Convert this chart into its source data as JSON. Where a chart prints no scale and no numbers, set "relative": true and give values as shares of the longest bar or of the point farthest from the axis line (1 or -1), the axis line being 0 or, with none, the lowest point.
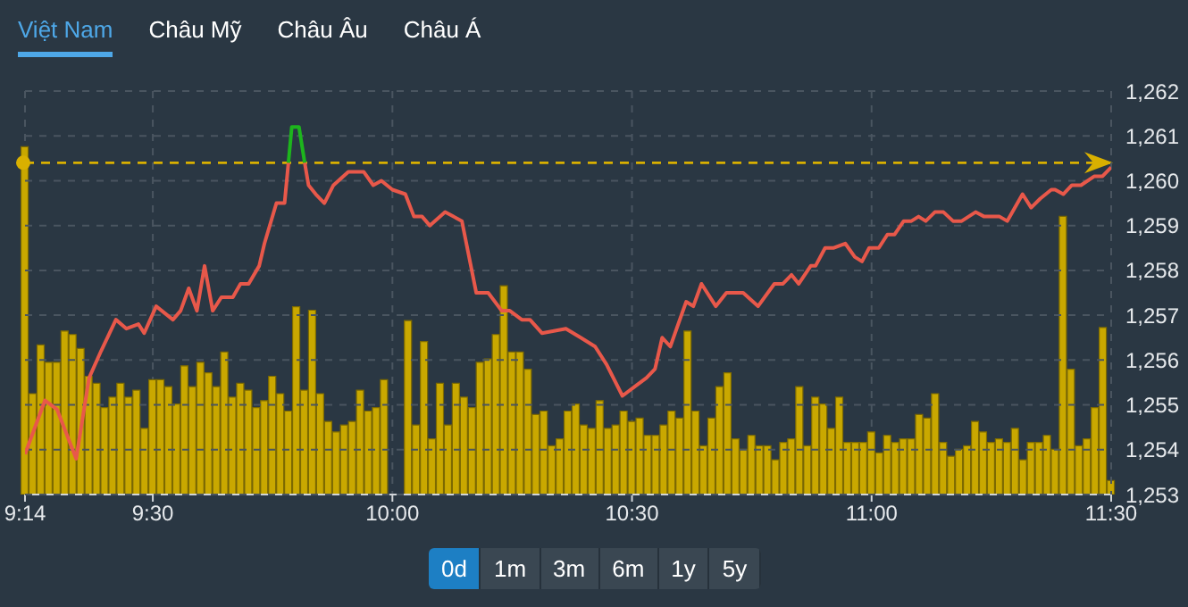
{
  "chart_data": [
    {
      "type": "line",
      "annotations": [
        "Việt Nam",
        "Châu Mỹ",
        "Châu Âu",
        "Châu Á",
        "0d",
        "1m",
        "3m",
        "6m",
        "1y",
        "5y"
      ],
      "xlim": [
        9.2333,
        11.5
      ],
      "tick_labels": "y",
      "ylim": [
        1253,
        1262
      ],
      "yticks": [
        {
          "value": 1253,
          "label": "1,253"
        },
        {
          "value": 1254,
          "label": "1,254"
        },
        {
          "value": 1255,
          "label": "1,255"
        },
        {
          "value": 1256,
          "label": "1,256"
        },
        {
          "value": 1257,
          "label": "1,257"
        },
        {
          "value": 1258,
          "label": "1,258"
        },
        {
          "value": 1259,
          "label": "1,259"
        },
        {
          "value": 1260,
          "label": "1,260"
        },
        {
          "value": 1261,
          "label": "1,261"
        },
        {
          "value": 1262,
          "label": "1,262"
        }
      ],
      "grid": "y",
      "ref_lines": [
        {
          "axis": "y",
          "value": 1260.4,
          "color": "#d9b000",
          "line_style": "dashed"
        }
      ],
      "series": [
        {
          "color": "#e8584a",
          "x": [
            9.2333,
            9.275,
            9.3,
            9.34,
            9.367,
            9.392,
            9.423,
            9.445,
            9.47,
            9.482,
            9.507,
            9.542,
            9.558,
            9.575,
            9.592,
            9.608,
            9.625,
            9.643,
            9.667,
            9.683,
            9.7,
            9.722,
            9.733,
            9.758,
            9.775,
            9.783
          ],
          "values": [
            1253.9,
            1255.1,
            1254.9,
            1253.8,
            1255.6,
            1256.2,
            1256.9,
            1256.7,
            1256.8,
            1256.6,
            1257.2,
            1256.9,
            1257.1,
            1257.6,
            1257.1,
            1258.1,
            1257.1,
            1257.4,
            1257.4,
            1257.7,
            1257.7,
            1258.1,
            1258.6,
            1259.5,
            1259.5,
            1260.4
          ]
        },
        {
          "color": "#1db51d",
          "x": [
            9.783,
            9.79,
            9.805,
            9.817
          ],
          "values": [
            1260.4,
            1261.2,
            1261.2,
            1260.4
          ]
        },
        {
          "color": "#e8584a",
          "x": [
            9.817,
            9.825,
            9.84,
            9.858,
            9.877,
            9.908,
            9.94,
            9.96,
            9.977,
            10.0,
            10.027,
            10.045,
            10.062,
            10.078,
            10.11,
            10.145,
            10.175,
            10.2,
            10.228,
            10.245,
            10.27,
            10.287,
            10.312,
            10.362,
            10.393,
            10.423,
            10.447,
            10.48,
            10.505,
            10.53,
            10.548,
            10.563,
            10.58,
            10.613,
            10.628,
            10.645,
            10.675,
            10.697,
            10.732,
            10.763,
            10.797,
            10.815,
            10.833,
            10.848,
            10.873,
            10.883,
            10.903,
            10.92,
            10.945,
            10.965,
            10.98,
            10.995,
            11.015,
            11.033,
            11.048,
            11.067,
            11.083,
            11.098,
            11.113,
            11.132,
            11.15,
            11.17,
            11.188,
            11.217,
            11.235,
            11.267,
            11.283,
            11.315,
            11.333,
            11.352,
            11.375,
            11.383,
            11.4,
            11.418,
            11.437,
            11.465,
            11.482,
            11.5
          ],
          "values": [
            1260.4,
            1259.9,
            1259.7,
            1259.5,
            1259.9,
            1260.2,
            1260.2,
            1259.9,
            1260.0,
            1259.8,
            1259.7,
            1259.2,
            1259.2,
            1259.0,
            1259.3,
            1259.1,
            1257.5,
            1257.5,
            1257.1,
            1257.1,
            1256.9,
            1256.9,
            1256.6,
            1256.7,
            1256.5,
            1256.3,
            1255.9,
            1255.2,
            1255.4,
            1255.6,
            1255.8,
            1256.5,
            1256.3,
            1257.3,
            1257.2,
            1257.7,
            1257.2,
            1257.5,
            1257.5,
            1257.2,
            1257.7,
            1257.7,
            1257.9,
            1257.7,
            1258.1,
            1258.1,
            1258.5,
            1258.5,
            1258.6,
            1258.3,
            1258.2,
            1258.5,
            1258.5,
            1258.8,
            1258.8,
            1259.1,
            1259.1,
            1259.2,
            1259.1,
            1259.3,
            1259.3,
            1259.1,
            1259.1,
            1259.3,
            1259.2,
            1259.2,
            1259.1,
            1259.7,
            1259.4,
            1259.6,
            1259.8,
            1259.8,
            1259.7,
            1259.9,
            1259.9,
            1260.1,
            1260.1,
            1260.3
          ]
        }
      ]
    },
    {
      "type": "bar",
      "relative": true,
      "tick_labels": "x",
      "grid": "x",
      "color": "#c9a800",
      "xlim": [
        9.2333,
        11.5
      ],
      "xticks": [
        {
          "value": 9.2333,
          "label": "9:14"
        },
        {
          "value": 9.5,
          "label": "9:30"
        },
        {
          "value": 10,
          "label": "10:00"
        },
        {
          "value": 10.5,
          "label": "10:30"
        },
        {
          "value": 11,
          "label": "11:00"
        },
        {
          "value": 11.5,
          "label": "11:30"
        }
      ],
      "x": [
        9.2333,
        9.25,
        9.2667,
        9.2833,
        9.3,
        9.3167,
        9.3333,
        9.35,
        9.3667,
        9.3833,
        9.4,
        9.4167,
        9.4333,
        9.45,
        9.4667,
        9.4833,
        9.5,
        9.5167,
        9.5333,
        9.55,
        9.5667,
        9.5833,
        9.6,
        9.6167,
        9.6333,
        9.65,
        9.6667,
        9.6833,
        9.7,
        9.7167,
        9.7333,
        9.75,
        9.7667,
        9.7833,
        9.8,
        9.8167,
        9.8333,
        9.85,
        9.8667,
        9.8833,
        9.9,
        9.9167,
        9.9333,
        9.95,
        9.9667,
        9.9833,
        10,
        10.0167,
        10.0333,
        10.05,
        10.0667,
        10.0833,
        10.1,
        10.1167,
        10.1333,
        10.15,
        10.1667,
        10.1833,
        10.2,
        10.2167,
        10.2333,
        10.25,
        10.2667,
        10.2833,
        10.3,
        10.3167,
        10.3333,
        10.35,
        10.3667,
        10.3833,
        10.4,
        10.4167,
        10.4333,
        10.45,
        10.4667,
        10.4833,
        10.5,
        10.5167,
        10.5333,
        10.55,
        10.5667,
        10.5833,
        10.6,
        10.6167,
        10.6333,
        10.65,
        10.6667,
        10.6833,
        10.7,
        10.7167,
        10.7333,
        10.75,
        10.7667,
        10.7833,
        10.8,
        10.8167,
        10.8333,
        10.85,
        10.8667,
        10.8833,
        10.9,
        10.9167,
        10.9333,
        10.95,
        10.9667,
        10.9833,
        11,
        11.0167,
        11.0333,
        11.05,
        11.0667,
        11.0833,
        11.1,
        11.1167,
        11.1333,
        11.15,
        11.1667,
        11.1833,
        11.2,
        11.2167,
        11.2333,
        11.25,
        11.2667,
        11.2833,
        11.3,
        11.3167,
        11.3333,
        11.35,
        11.3667,
        11.3833,
        11.4,
        11.4167,
        11.4333,
        11.45,
        11.4667,
        11.4833,
        11.5
      ],
      "values": [
        1.0,
        0.29,
        0.43,
        0.38,
        0.38,
        0.47,
        0.46,
        0.42,
        0.34,
        0.32,
        0.25,
        0.28,
        0.32,
        0.28,
        0.3,
        0.19,
        0.33,
        0.33,
        0.31,
        0.26,
        0.37,
        0.31,
        0.38,
        0.35,
        0.31,
        0.41,
        0.28,
        0.32,
        0.3,
        0.25,
        0.27,
        0.34,
        0.29,
        0.24,
        0.54,
        0.3,
        0.53,
        0.29,
        0.21,
        0.18,
        0.2,
        0.21,
        0.3,
        0.24,
        0.25,
        0.33,
        null,
        null,
        0.5,
        0.2,
        0.44,
        0.16,
        0.32,
        0.2,
        0.32,
        0.28,
        0.25,
        0.38,
        0.39,
        0.46,
        0.6,
        0.41,
        0.41,
        0.36,
        0.23,
        0.24,
        0.14,
        0.16,
        0.24,
        0.26,
        0.2,
        0.19,
        0.27,
        0.19,
        0.2,
        0.24,
        0.21,
        0.22,
        0.17,
        0.17,
        0.2,
        0.24,
        0.22,
        0.47,
        0.24,
        0.14,
        0.22,
        0.31,
        0.35,
        0.16,
        0.13,
        0.17,
        0.14,
        0.14,
        0.1,
        0.15,
        0.16,
        0.31,
        0.14,
        0.28,
        0.26,
        0.19,
        0.28,
        0.15,
        0.15,
        0.15,
        0.18,
        0.12,
        0.17,
        0.15,
        0.16,
        0.16,
        0.23,
        0.22,
        0.29,
        0.15,
        0.11,
        0.13,
        0.14,
        0.21,
        0.18,
        0.15,
        0.16,
        0.15,
        0.19,
        0.1,
        0.15,
        0.15,
        0.17,
        0.13,
        0.8,
        0.36,
        0.14,
        0.16,
        0.25,
        0.48,
        0.04
      ]
    }
  ]
}
